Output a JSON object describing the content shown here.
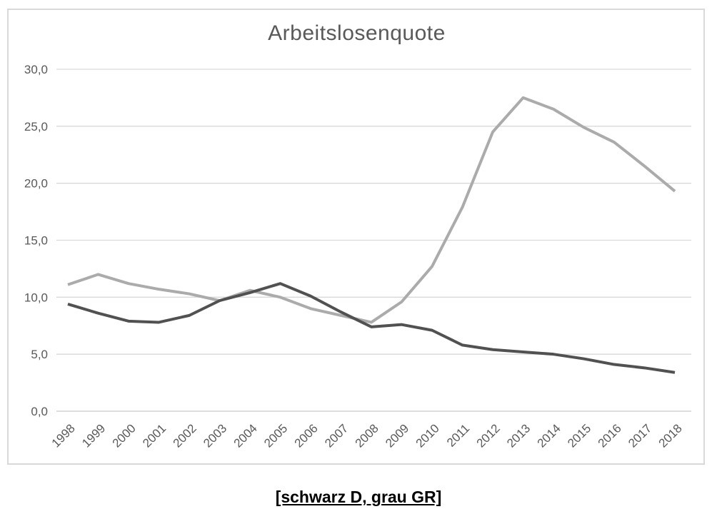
{
  "page": {
    "background_color": "#ffffff"
  },
  "chart": {
    "title": "Arbeitslosenquote",
    "frame_border_color": "#d9d9d9",
    "gridline_color": "#d9d9d9",
    "axis_line_color": "#c9c9c9",
    "label_color": "#595959",
    "title_color": "#595959"
  },
  "caption": {
    "text": "[schwarz D, grau GR]"
  },
  "chart_data": {
    "type": "line",
    "title": "Arbeitslosenquote",
    "x": [
      1998,
      1999,
      2000,
      2001,
      2002,
      2003,
      2004,
      2005,
      2006,
      2007,
      2008,
      2009,
      2010,
      2011,
      2012,
      2013,
      2014,
      2015,
      2016,
      2017,
      2018
    ],
    "series": [
      {
        "name": "GR (grau, Griechenland)",
        "color": "#ababab",
        "values": [
          11.1,
          12.0,
          11.2,
          10.7,
          10.3,
          9.7,
          10.6,
          10.0,
          9.0,
          8.4,
          7.8,
          9.6,
          12.7,
          17.9,
          24.5,
          27.5,
          26.5,
          24.9,
          23.6,
          21.5,
          19.3
        ]
      },
      {
        "name": "D (schwarz, Deutschland)",
        "color": "#515151",
        "values": [
          9.4,
          8.6,
          7.9,
          7.8,
          8.4,
          9.7,
          10.4,
          11.2,
          10.1,
          8.7,
          7.4,
          7.6,
          7.1,
          5.8,
          5.4,
          5.2,
          5.0,
          4.6,
          4.1,
          3.8,
          3.4
        ]
      }
    ],
    "xlabel": "",
    "ylabel": "",
    "ylim": [
      0,
      30
    ],
    "yticks": [
      0,
      5,
      10,
      15,
      20,
      25,
      30
    ],
    "ytick_labels": [
      "0,0",
      "5,0",
      "10,0",
      "15,0",
      "20,0",
      "25,0",
      "30,0"
    ],
    "grid": true,
    "legend_position": "none"
  }
}
